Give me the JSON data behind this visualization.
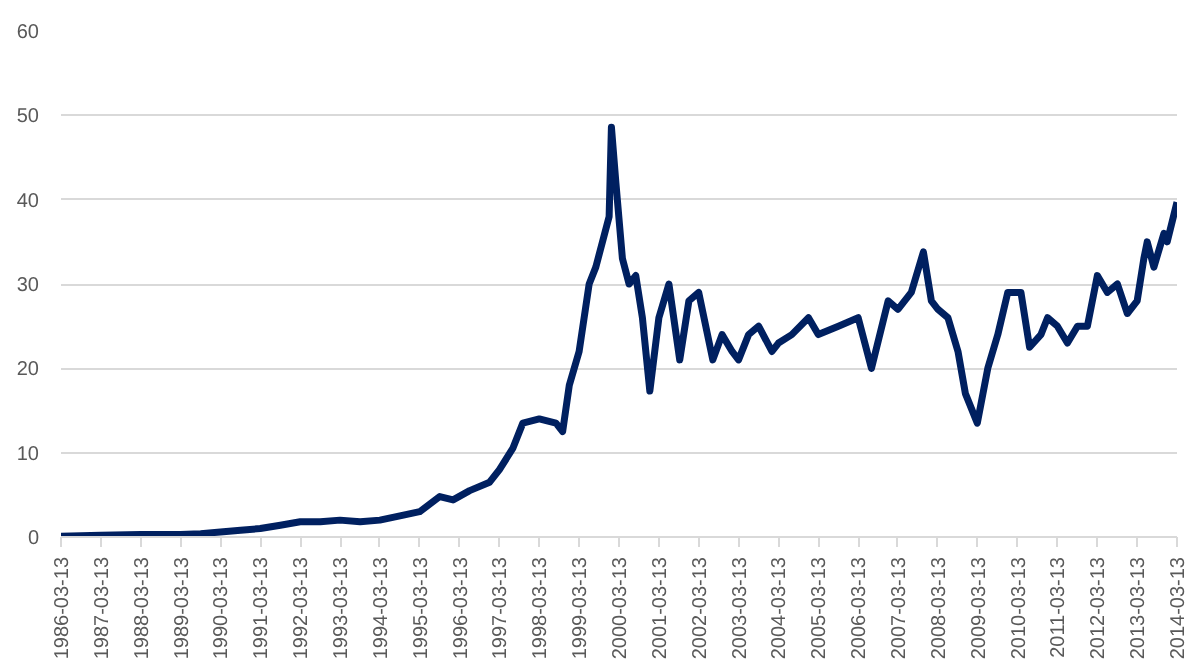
{
  "chart_data": {
    "type": "line",
    "x": [
      "1986-03-13",
      "1987-03-13",
      "1988-03-13",
      "1989-03-13",
      "1989-09-13",
      "1990-03-13",
      "1990-09-13",
      "1991-03-13",
      "1991-09-13",
      "1992-03-13",
      "1992-09-13",
      "1993-03-13",
      "1993-09-13",
      "1994-03-13",
      "1994-09-13",
      "1995-03-13",
      "1995-09-13",
      "1996-01-13",
      "1996-06-13",
      "1996-12-13",
      "1997-03-13",
      "1997-07-13",
      "1997-10-13",
      "1998-03-13",
      "1998-08-13",
      "1998-10-13",
      "1998-12-13",
      "1999-03-13",
      "1999-06-13",
      "1999-08-13",
      "1999-10-13",
      "1999-12-13",
      "2000-01-03",
      "2000-02-13",
      "2000-04-13",
      "2000-06-13",
      "2000-08-13",
      "2000-10-13",
      "2000-12-20",
      "2001-03-13",
      "2001-06-13",
      "2001-09-20",
      "2001-12-13",
      "2002-03-13",
      "2002-07-20",
      "2002-10-13",
      "2003-01-13",
      "2003-03-13",
      "2003-06-13",
      "2003-09-13",
      "2004-01-13",
      "2004-03-13",
      "2004-07-13",
      "2004-12-13",
      "2005-03-13",
      "2005-09-13",
      "2006-03-13",
      "2006-07-13",
      "2006-12-13",
      "2007-03-13",
      "2007-07-13",
      "2007-11-01",
      "2008-01-13",
      "2008-03-13",
      "2008-06-13",
      "2008-09-13",
      "2008-11-20",
      "2009-03-09",
      "2009-06-13",
      "2009-09-13",
      "2009-12-13",
      "2010-04-13",
      "2010-07-01",
      "2010-10-13",
      "2010-12-13",
      "2011-03-13",
      "2011-06-13",
      "2011-09-13",
      "2011-12-13",
      "2012-03-13",
      "2012-06-13",
      "2012-09-13",
      "2012-12-13",
      "2013-03-13",
      "2013-05-13",
      "2013-06-13",
      "2013-08-13",
      "2013-11-13",
      "2013-12-13",
      "2014-03-13"
    ],
    "series": [
      {
        "color": "#002060",
        "values": [
          0.1,
          0.2,
          0.3,
          0.3,
          0.4,
          0.6,
          0.8,
          1.0,
          1.4,
          1.8,
          1.8,
          2.0,
          1.8,
          2.0,
          2.5,
          3.0,
          4.8,
          4.4,
          5.5,
          6.5,
          8.0,
          10.5,
          13.5,
          14.0,
          13.5,
          12.5,
          18.0,
          22.0,
          30.0,
          32.0,
          35.0,
          38.0,
          48.6,
          42.0,
          33.0,
          30.0,
          31.0,
          26.0,
          17.3,
          26.0,
          30.0,
          21.0,
          28.0,
          29.0,
          21.0,
          24.0,
          22.0,
          21.0,
          24.0,
          25.0,
          22.0,
          23.0,
          24.0,
          26.0,
          24.0,
          25.0,
          26.0,
          20.0,
          28.0,
          27.0,
          29.0,
          33.8,
          28.0,
          27.0,
          26.0,
          22.0,
          17.0,
          13.5,
          20.0,
          24.0,
          29.0,
          29.0,
          22.5,
          24.0,
          26.0,
          25.0,
          23.0,
          25.0,
          25.0,
          31.0,
          29.0,
          30.0,
          26.5,
          28.0,
          33.0,
          35.0,
          32.0,
          36.0,
          35.0,
          39.7
        ]
      }
    ],
    "ylim": [
      0,
      60
    ],
    "yticks": [
      0,
      10,
      20,
      30,
      40,
      50,
      60
    ],
    "xlim": [
      "1986-03-13",
      "2014-03-13"
    ],
    "xticks": [
      "1986-03-13",
      "1987-03-13",
      "1988-03-13",
      "1989-03-13",
      "1990-03-13",
      "1991-03-13",
      "1992-03-13",
      "1993-03-13",
      "1994-03-13",
      "1995-03-13",
      "1996-03-13",
      "1997-03-13",
      "1998-03-13",
      "1999-03-13",
      "2000-03-13",
      "2001-03-13",
      "2002-03-13",
      "2003-03-13",
      "2004-03-13",
      "2005-03-13",
      "2006-03-13",
      "2007-03-13",
      "2008-03-13",
      "2009-03-13",
      "2010-03-13",
      "2011-03-13",
      "2012-03-13",
      "2013-03-13",
      "2014-03-13"
    ],
    "grid": "y",
    "line_style": "solid"
  }
}
